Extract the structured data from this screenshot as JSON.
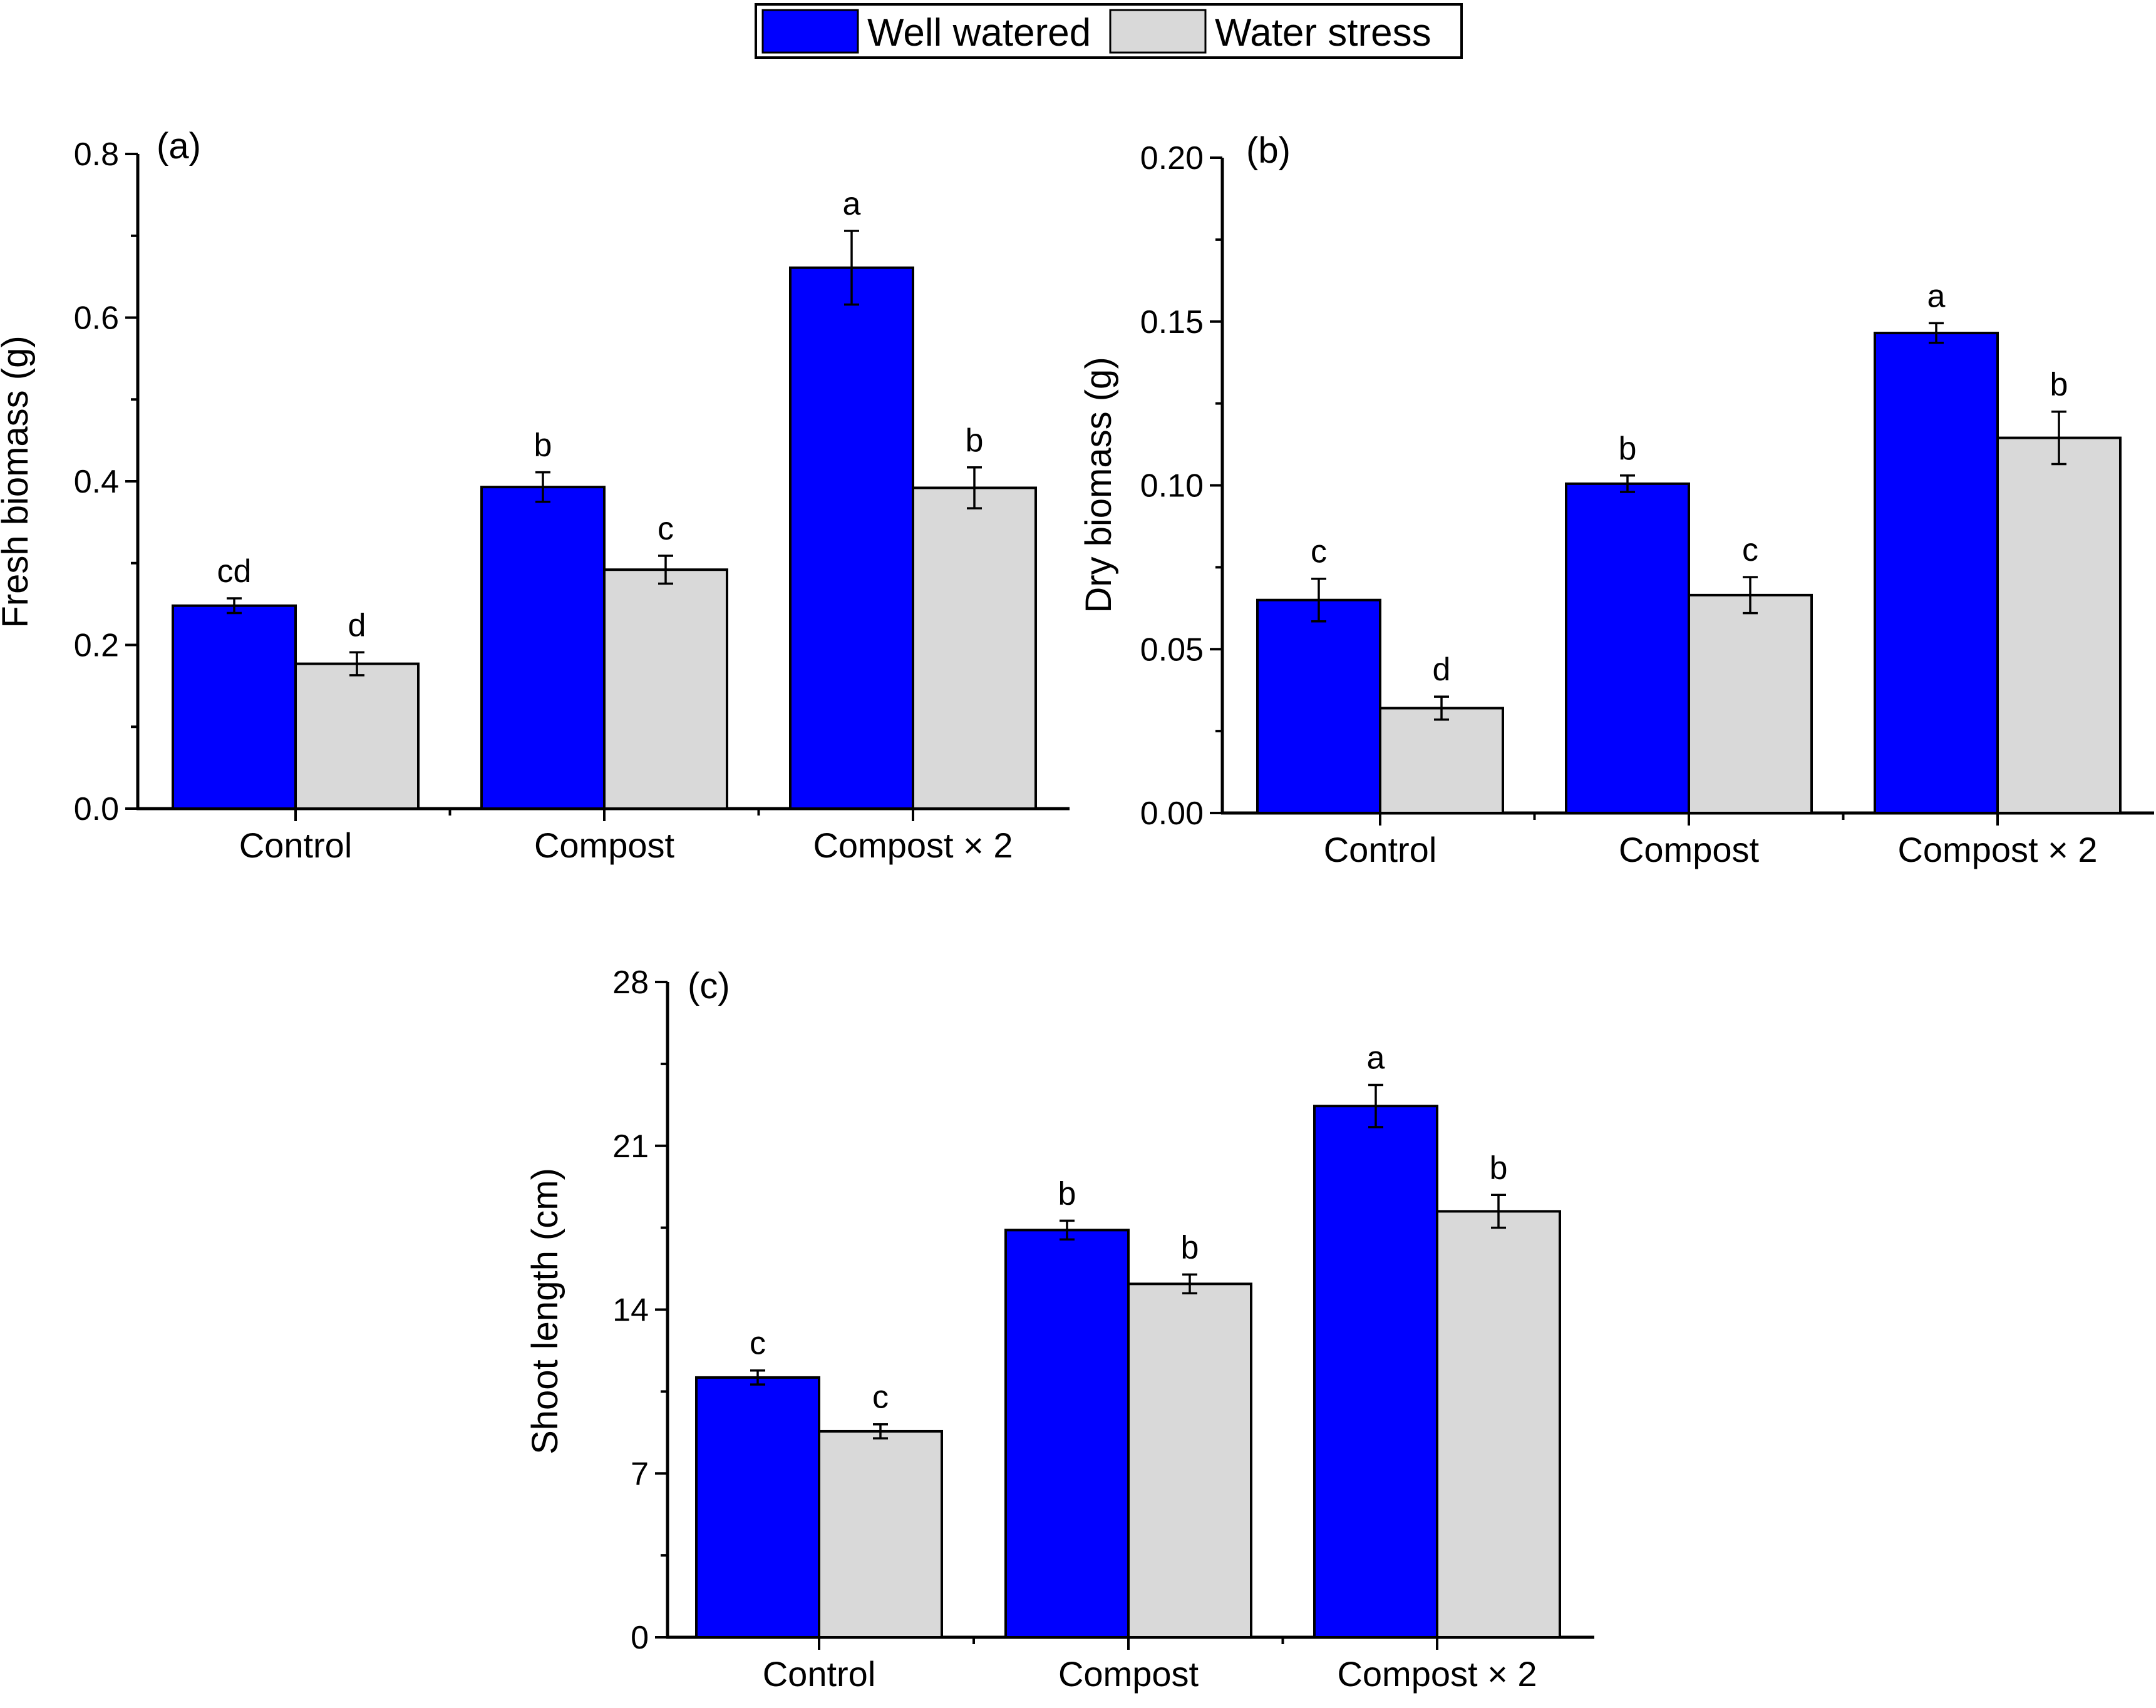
{
  "legend": {
    "items": [
      {
        "label": "Well watered",
        "color": "#0000ff"
      },
      {
        "label": "Water stress",
        "color": "#d9d9d9"
      }
    ]
  },
  "chart_data": [
    {
      "type": "bar",
      "panel": "(a)",
      "ylabel": "Fresh biomass (g)",
      "xlabel": "",
      "categories": [
        "Control",
        "Compost",
        "Compost × 2"
      ],
      "ylim": [
        0,
        0.8
      ],
      "yticks": [
        0.0,
        0.2,
        0.4,
        0.6,
        0.8
      ],
      "ytick_labels": [
        "0.0",
        "0.2",
        "0.4",
        "0.6",
        "0.8"
      ],
      "series": [
        {
          "name": "Well watered",
          "color": "#0000ff",
          "values": [
            0.248,
            0.393,
            0.661
          ],
          "errors": [
            0.009,
            0.018,
            0.045
          ],
          "letters": [
            "cd",
            "b",
            "a"
          ]
        },
        {
          "name": "Water stress",
          "color": "#d9d9d9",
          "values": [
            0.177,
            0.292,
            0.392
          ],
          "errors": [
            0.014,
            0.017,
            0.025
          ],
          "letters": [
            "d",
            "c",
            "b"
          ]
        }
      ]
    },
    {
      "type": "bar",
      "panel": "(b)",
      "ylabel": "Dry biomass (g)",
      "xlabel": "",
      "categories": [
        "Control",
        "Compost",
        "Compost × 2"
      ],
      "ylim": [
        0,
        0.2
      ],
      "yticks": [
        0.0,
        0.05,
        0.1,
        0.15,
        0.2
      ],
      "ytick_labels": [
        "0.00",
        "0.05",
        "0.10",
        "0.15",
        "0.20"
      ],
      "series": [
        {
          "name": "Well watered",
          "color": "#0000ff",
          "values": [
            0.065,
            0.1005,
            0.1465
          ],
          "errors": [
            0.0065,
            0.0025,
            0.003
          ],
          "letters": [
            "c",
            "b",
            "a"
          ]
        },
        {
          "name": "Water stress",
          "color": "#d9d9d9",
          "values": [
            0.032,
            0.0665,
            0.1145
          ],
          "errors": [
            0.0035,
            0.0055,
            0.008
          ],
          "letters": [
            "d",
            "c",
            "b"
          ]
        }
      ]
    },
    {
      "type": "bar",
      "panel": "(c)",
      "ylabel": "Shoot length (cm)",
      "xlabel": "",
      "categories": [
        "Control",
        "Compost",
        "Compost × 2"
      ],
      "ylim": [
        0,
        28
      ],
      "yticks": [
        0,
        7,
        14,
        21,
        28
      ],
      "ytick_labels": [
        "0",
        "7",
        "14",
        "21",
        "28"
      ],
      "series": [
        {
          "name": "Well watered",
          "color": "#0000ff",
          "values": [
            11.1,
            17.4,
            22.7
          ],
          "errors": [
            0.3,
            0.4,
            0.9
          ],
          "letters": [
            "c",
            "b",
            "a"
          ]
        },
        {
          "name": "Water stress",
          "color": "#d9d9d9",
          "values": [
            8.8,
            15.1,
            18.2
          ],
          "errors": [
            0.3,
            0.4,
            0.7
          ],
          "letters": [
            "c",
            "b",
            "b"
          ]
        }
      ]
    }
  ]
}
